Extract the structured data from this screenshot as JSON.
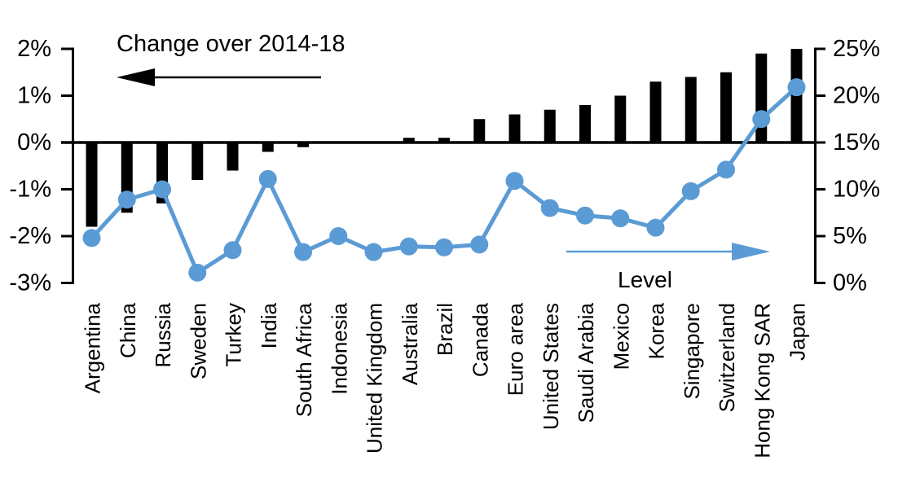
{
  "chart_data": {
    "type": "combo-bar-line",
    "categories": [
      "Argentina",
      "China",
      "Russia",
      "Sweden",
      "Turkey",
      "India",
      "South Africa",
      "Indonesia",
      "United Kingdom",
      "Australia",
      "Brazil",
      "Canada",
      "Euro area",
      "United States",
      "Saudi Arabia",
      "Mexico",
      "Korea",
      "Singapore",
      "Switzerland",
      "Hong Kong SAR",
      "Japan"
    ],
    "series": [
      {
        "name": "Change over 2014-18",
        "type": "bar",
        "axis": "left",
        "color": "#000000",
        "values": [
          -1.8,
          -1.5,
          -1.3,
          -0.8,
          -0.6,
          -0.2,
          -0.1,
          0.0,
          0.0,
          0.1,
          0.1,
          0.5,
          0.6,
          0.7,
          0.8,
          1.0,
          1.3,
          1.4,
          1.5,
          1.9,
          2.0
        ]
      },
      {
        "name": "Level",
        "type": "line",
        "axis": "right",
        "color": "#5B9BD5",
        "values": [
          4.8,
          8.9,
          10.0,
          1.1,
          3.5,
          11.1,
          3.3,
          5.0,
          3.3,
          3.9,
          3.8,
          4.1,
          10.9,
          8.0,
          7.2,
          6.9,
          5.9,
          9.8,
          12.1,
          17.5,
          20.9
        ]
      }
    ],
    "left_axis": {
      "tick_labels": [
        "2%",
        "1%",
        "0%",
        "-1%",
        "-2%",
        "-3%"
      ],
      "tick_values": [
        2,
        1,
        0,
        -1,
        -2,
        -3
      ],
      "range": [
        -3,
        2
      ]
    },
    "right_axis": {
      "tick_labels": [
        "25%",
        "20%",
        "15%",
        "10%",
        "5%",
        "0%"
      ],
      "tick_values": [
        25,
        20,
        15,
        10,
        5,
        0
      ],
      "range": [
        0,
        25
      ]
    },
    "annotations": {
      "bar_label": "Change over 2014-18",
      "line_label": "Level"
    },
    "grid": false,
    "legend_position": "in-plot-annotations"
  },
  "colors": {
    "bar": "#000000",
    "line": "#5B9BD5",
    "axis": "#000000",
    "background": "#FFFFFF"
  }
}
